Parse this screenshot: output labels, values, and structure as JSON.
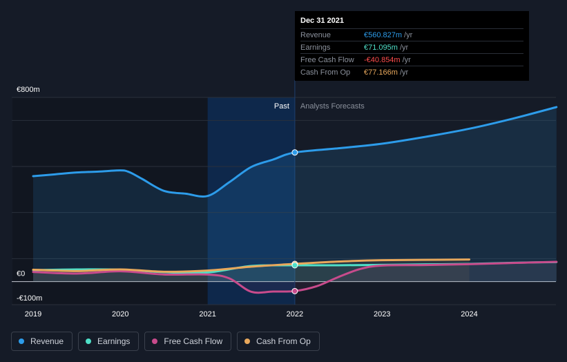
{
  "colors": {
    "revenue": "#2d9cea",
    "earnings": "#4fe0c8",
    "fcf": "#c84b8c",
    "cfo": "#e8a85c",
    "background": "#151b27"
  },
  "tooltip": {
    "date": "Dec 31 2021",
    "rows": [
      {
        "label": "Revenue",
        "value": "€560.827m",
        "unit": "/yr",
        "color": "#2d9cea"
      },
      {
        "label": "Earnings",
        "value": "€71.095m",
        "unit": "/yr",
        "color": "#4fe0c8"
      },
      {
        "label": "Free Cash Flow",
        "value": "-€40.854m",
        "unit": "/yr",
        "color": "#ff4d4d"
      },
      {
        "label": "Cash From Op",
        "value": "€77.166m",
        "unit": "/yr",
        "color": "#e8a85c"
      }
    ]
  },
  "legend": [
    {
      "label": "Revenue",
      "color": "#2d9cea"
    },
    {
      "label": "Earnings",
      "color": "#4fe0c8"
    },
    {
      "label": "Free Cash Flow",
      "color": "#c84b8c"
    },
    {
      "label": "Cash From Op",
      "color": "#e8a85c"
    }
  ],
  "chart_data": {
    "type": "line",
    "title": "",
    "xlabel": "",
    "ylabel": "",
    "ylim": [
      -100,
      800
    ],
    "xlim": [
      2019.0,
      2025.0
    ],
    "y_tick_labels": [
      {
        "value": 800,
        "label": "€800m"
      },
      {
        "value": 0,
        "label": "€0"
      },
      {
        "value": -100,
        "label": "-€100m"
      }
    ],
    "x_ticks": [
      2019,
      2020,
      2021,
      2022,
      2023,
      2024
    ],
    "region_labels": {
      "past": "Past",
      "forecast": "Analysts Forecasts"
    },
    "past_end": 2022.0,
    "highlight_start": 2021.0,
    "grid": true,
    "series": [
      {
        "name": "Revenue",
        "color": "#2d9cea",
        "points": [
          [
            2019.0,
            458
          ],
          [
            2019.25,
            466
          ],
          [
            2019.5,
            474
          ],
          [
            2019.75,
            478
          ],
          [
            2020.0,
            483
          ],
          [
            2020.1,
            476
          ],
          [
            2020.25,
            446
          ],
          [
            2020.5,
            394
          ],
          [
            2020.75,
            382
          ],
          [
            2021.0,
            372
          ],
          [
            2021.25,
            432
          ],
          [
            2021.5,
            498
          ],
          [
            2021.75,
            530
          ],
          [
            2022.0,
            561
          ],
          [
            2022.5,
            579
          ],
          [
            2023.0,
            599
          ],
          [
            2023.5,
            629
          ],
          [
            2024.0,
            664
          ],
          [
            2024.5,
            708
          ],
          [
            2025.0,
            758
          ]
        ]
      },
      {
        "name": "Earnings",
        "color": "#4fe0c8",
        "points": [
          [
            2019.0,
            50
          ],
          [
            2019.5,
            53
          ],
          [
            2020.0,
            52
          ],
          [
            2020.5,
            41
          ],
          [
            2021.0,
            40
          ],
          [
            2021.5,
            68
          ],
          [
            2022.0,
            71
          ],
          [
            2022.5,
            71
          ],
          [
            2023.0,
            73
          ],
          [
            2023.5,
            75
          ],
          [
            2024.0,
            77
          ],
          [
            2024.5,
            82
          ],
          [
            2025.0,
            85
          ]
        ]
      },
      {
        "name": "Free Cash Flow",
        "color": "#c84b8c",
        "points": [
          [
            2019.0,
            42
          ],
          [
            2019.5,
            35
          ],
          [
            2020.0,
            45
          ],
          [
            2020.5,
            31
          ],
          [
            2021.0,
            31
          ],
          [
            2021.25,
            14
          ],
          [
            2021.5,
            -44
          ],
          [
            2021.75,
            -43
          ],
          [
            2022.0,
            -41
          ],
          [
            2022.25,
            -20
          ],
          [
            2022.5,
            20
          ],
          [
            2022.75,
            55
          ],
          [
            2023.0,
            70
          ],
          [
            2023.5,
            72
          ],
          [
            2024.0,
            76
          ],
          [
            2024.5,
            81
          ],
          [
            2025.0,
            86
          ]
        ]
      },
      {
        "name": "Cash From Op",
        "color": "#e8a85c",
        "points": [
          [
            2019.0,
            52
          ],
          [
            2019.5,
            46
          ],
          [
            2020.0,
            53
          ],
          [
            2020.5,
            43
          ],
          [
            2021.0,
            48
          ],
          [
            2021.5,
            65
          ],
          [
            2022.0,
            77
          ],
          [
            2022.5,
            87
          ],
          [
            2023.0,
            93
          ],
          [
            2024.0,
            96
          ]
        ]
      }
    ],
    "markers": [
      {
        "series": "Revenue",
        "x": 2022.0,
        "y": 561
      },
      {
        "series": "Cash From Op",
        "x": 2022.0,
        "y": 77
      },
      {
        "series": "Earnings",
        "x": 2022.0,
        "y": 71
      },
      {
        "series": "Free Cash Flow",
        "x": 2022.0,
        "y": -41
      }
    ]
  }
}
